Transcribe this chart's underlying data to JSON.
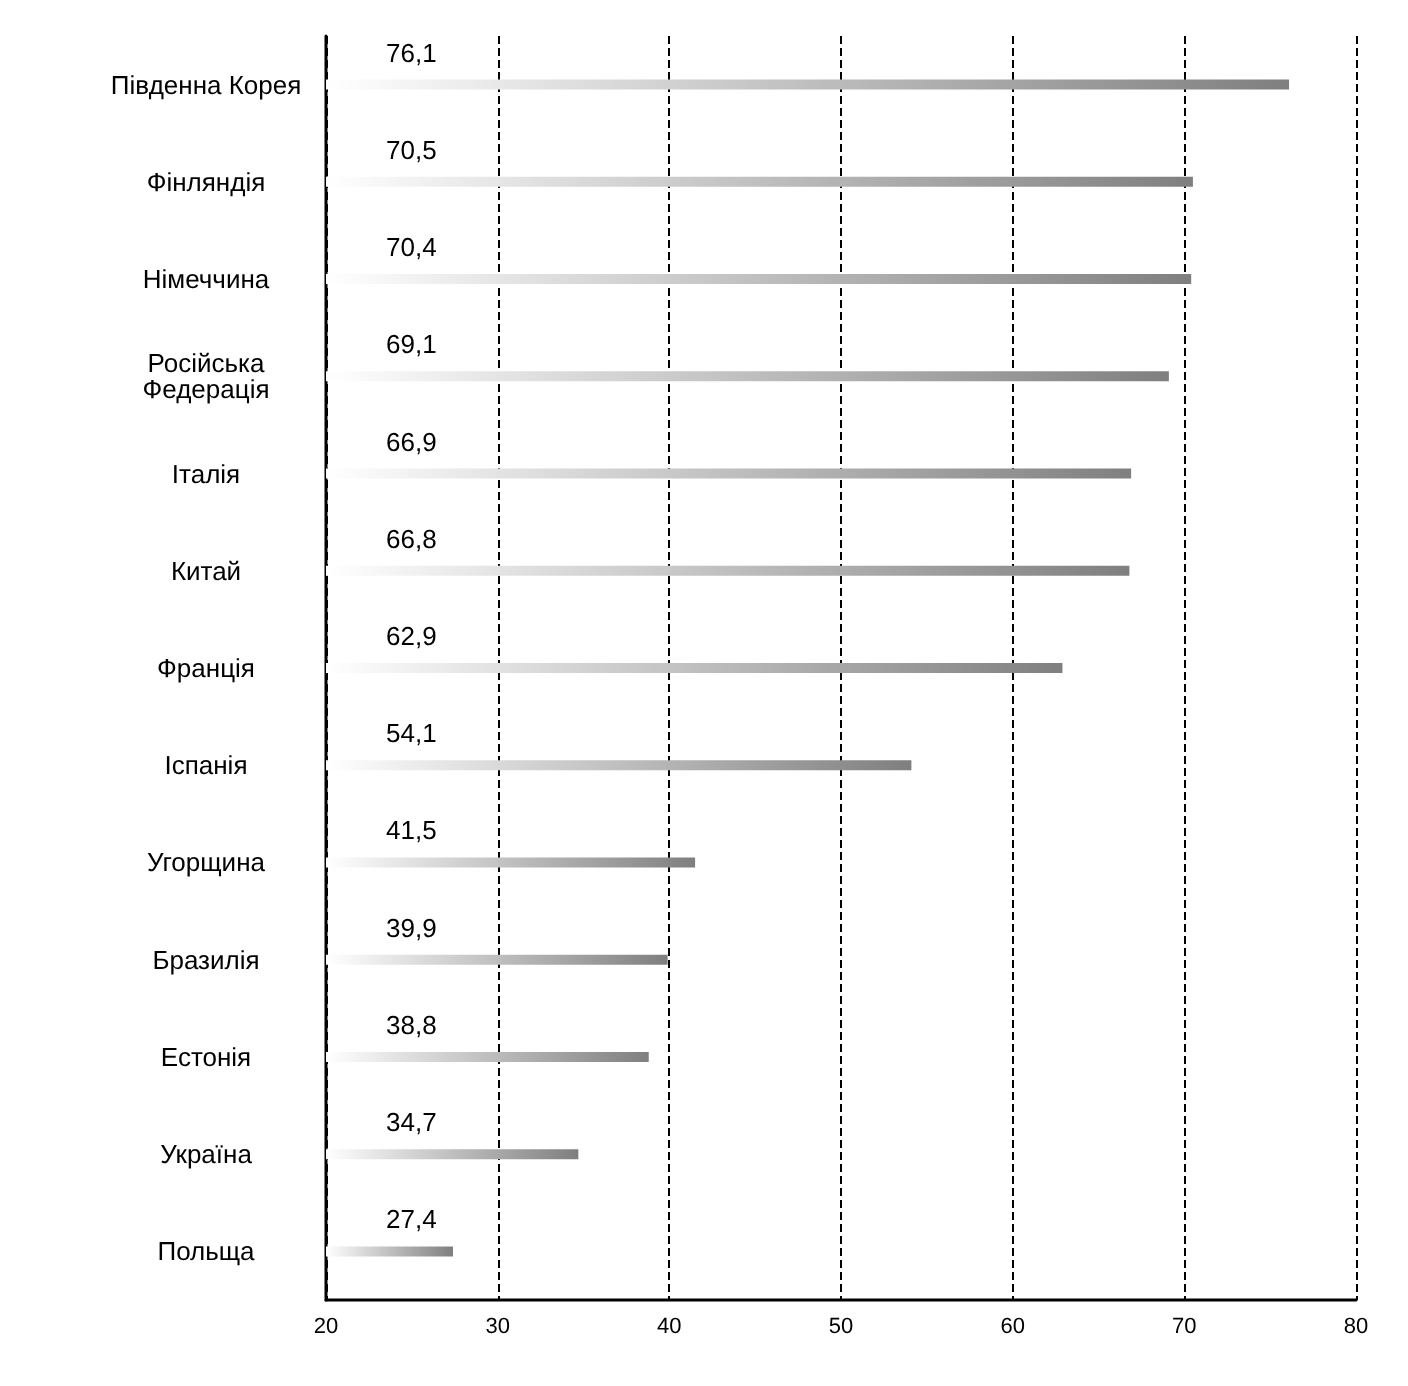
{
  "chart_data": {
    "type": "bar",
    "orientation": "horizontal",
    "categories": [
      "Південна Корея",
      "Фінляндія",
      "Німеччина",
      "Російська\nФедерація",
      "Італія",
      "Китай",
      "Франція",
      "Іспанія",
      "Угорщина",
      "Бразилія",
      "Естонія",
      "Україна",
      "Польща"
    ],
    "values": [
      76.1,
      70.5,
      70.4,
      69.1,
      66.9,
      66.8,
      62.9,
      54.1,
      41.5,
      39.9,
      38.8,
      34.7,
      27.4
    ],
    "value_labels": [
      "76,1",
      "70,5",
      "70,4",
      "69,1",
      "66,9",
      "66,8",
      "62,9",
      "54,1",
      "41,5",
      "39,9",
      "38,8",
      "34,7",
      "27,4"
    ],
    "color": "#7f7f7f",
    "xlim": [
      20,
      80
    ],
    "xticks": [
      20,
      30,
      40,
      50,
      60,
      70,
      80
    ],
    "grid": "x",
    "line_style": "dashed"
  }
}
